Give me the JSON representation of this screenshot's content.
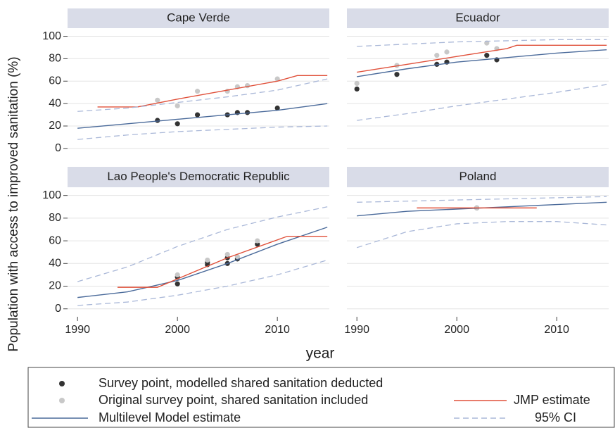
{
  "axes": {
    "ylabel": "Population with access to improved sanitation (%)",
    "xlabel": "year",
    "xlim": [
      1989,
      2015.2
    ],
    "ylim": [
      -7,
      106
    ],
    "xticks": [
      1990,
      2000,
      2010
    ],
    "yticks": [
      0,
      20,
      40,
      60,
      80,
      100
    ],
    "grid": true
  },
  "legend": [
    {
      "name": "Survey point, modelled shared sanitation deducted",
      "color": "#333333",
      "style": "marker"
    },
    {
      "name": "Original survey point, shared sanitation included",
      "color": "#c8c8c8",
      "style": "marker"
    },
    {
      "name": "Multilevel Model estimate",
      "color": "#4a6a9a",
      "style": "line"
    },
    {
      "name": "JMP estimate",
      "color": "#e0503a",
      "style": "line"
    },
    {
      "name": "95% CI",
      "color": "#aab8d8",
      "style": "dashed"
    }
  ],
  "chart_data": [
    {
      "type": "line",
      "title": "Cape Verde",
      "series": [
        {
          "x": [
            1998,
            2000,
            2002,
            2005,
            2006,
            2007,
            2010
          ],
          "values": [
            25,
            22,
            30,
            30,
            32,
            32,
            36
          ]
        },
        {
          "x": [
            1998,
            2000,
            2002,
            2005,
            2006,
            2007,
            2010
          ],
          "values": [
            43,
            38,
            51,
            51,
            55,
            56,
            62
          ]
        },
        {
          "x": [
            1990,
            1995,
            2000,
            2005,
            2010,
            2015
          ],
          "values": [
            18,
            22,
            26,
            30,
            34,
            40
          ]
        },
        {
          "x": [
            1992,
            1996,
            2000,
            2005,
            2010,
            2012,
            2015
          ],
          "values": [
            37,
            37,
            44,
            52,
            60,
            65,
            65
          ]
        },
        {
          "x": [
            1990,
            1995,
            2000,
            2005,
            2010,
            2015
          ],
          "lower": [
            8,
            12,
            15,
            17,
            19,
            20
          ],
          "upper": [
            33,
            36,
            41,
            46,
            52,
            62
          ]
        }
      ]
    },
    {
      "type": "line",
      "title": "Ecuador",
      "series": [
        {
          "x": [
            1990,
            1994,
            1998,
            1999,
            2003,
            2004
          ],
          "values": [
            53,
            66,
            75,
            77,
            83,
            79
          ]
        },
        {
          "x": [
            1990,
            1994,
            1998,
            1999,
            2003,
            2004
          ],
          "values": [
            58,
            74,
            83,
            86,
            94,
            89
          ]
        },
        {
          "x": [
            1990,
            1995,
            2000,
            2005,
            2010,
            2015
          ],
          "values": [
            64,
            71,
            77,
            81,
            85,
            88
          ]
        },
        {
          "x": [
            1990,
            1995,
            2000,
            2005,
            2006,
            2015
          ],
          "values": [
            68,
            75,
            82,
            89,
            92,
            92
          ]
        },
        {
          "x": [
            1990,
            1995,
            2000,
            2005,
            2010,
            2015
          ],
          "lower": [
            25,
            31,
            38,
            44,
            50,
            57
          ],
          "upper": [
            91,
            93,
            95,
            96,
            97,
            97
          ]
        }
      ]
    },
    {
      "type": "line",
      "title": "Lao People's Democratic Republic",
      "series": [
        {
          "x": [
            2000,
            2000,
            2003,
            2003,
            2005,
            2005,
            2006,
            2008
          ],
          "values": [
            22,
            28,
            39,
            41,
            40,
            45,
            44,
            57
          ]
        },
        {
          "x": [
            2000,
            2003,
            2005,
            2006,
            2008
          ],
          "values": [
            30,
            43,
            48,
            46,
            60
          ]
        },
        {
          "x": [
            1990,
            1995,
            2000,
            2005,
            2010,
            2015
          ],
          "values": [
            10,
            15,
            25,
            40,
            57,
            72
          ]
        },
        {
          "x": [
            1994,
            1998,
            2005,
            2011,
            2015
          ],
          "values": [
            19,
            19,
            45,
            64,
            64
          ]
        },
        {
          "x": [
            1990,
            1995,
            2000,
            2005,
            2010,
            2015
          ],
          "lower": [
            3,
            6,
            12,
            20,
            30,
            43
          ],
          "upper": [
            24,
            37,
            55,
            70,
            81,
            90
          ]
        }
      ]
    },
    {
      "type": "line",
      "title": "Poland",
      "series": [
        {
          "x": [
            2002
          ],
          "values": [
            89
          ]
        },
        {
          "x": [
            2002
          ],
          "values": [
            89
          ]
        },
        {
          "x": [
            1990,
            1995,
            2000,
            2005,
            2010,
            2015
          ],
          "values": [
            82,
            86,
            88,
            90,
            92,
            94
          ]
        },
        {
          "x": [
            1996,
            2008
          ],
          "values": [
            89,
            89
          ]
        },
        {
          "x": [
            1990,
            1995,
            2000,
            2005,
            2010,
            2015
          ],
          "lower": [
            54,
            68,
            75,
            77,
            77,
            74
          ],
          "upper": [
            94,
            95,
            96,
            97,
            98,
            99
          ]
        }
      ]
    }
  ]
}
